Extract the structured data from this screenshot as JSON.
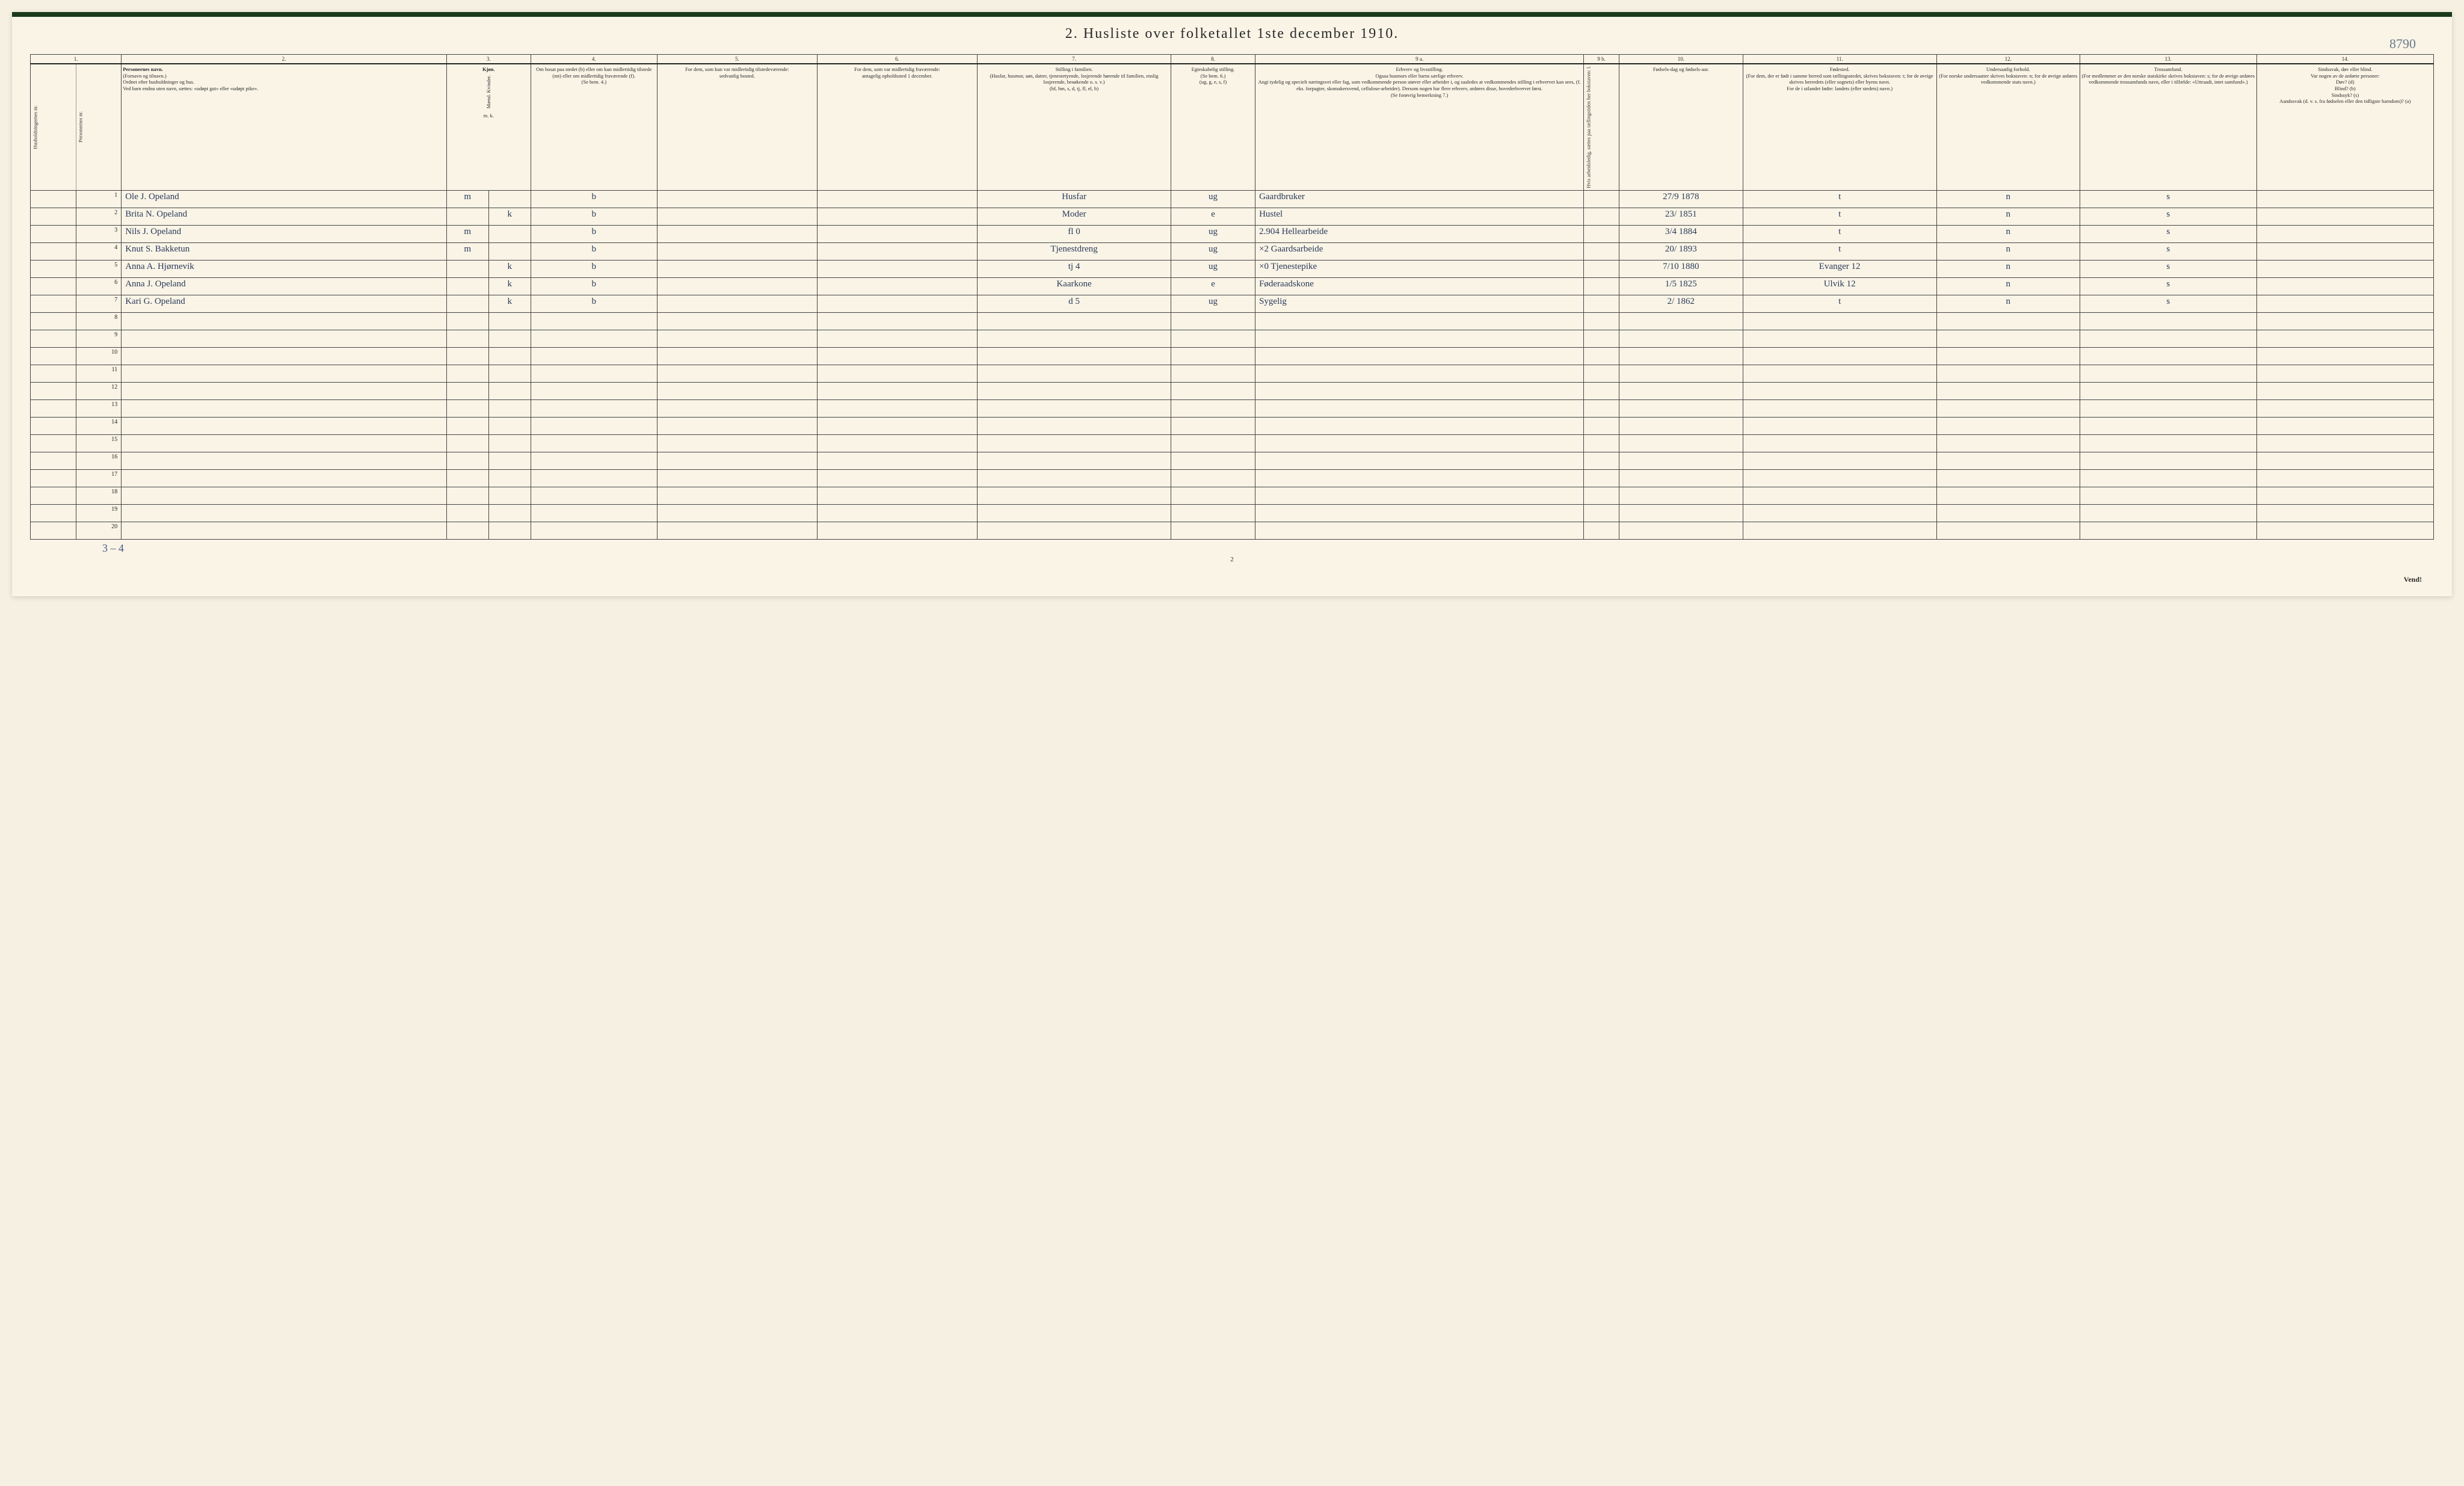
{
  "corner_note": "8790",
  "title": "2.  Husliste over folketallet 1ste december 1910.",
  "col_numbers": [
    "1.",
    "2.",
    "3.",
    "4.",
    "5.",
    "6.",
    "7.",
    "8.",
    "9 a.",
    "9 b.",
    "10.",
    "11.",
    "12.",
    "13.",
    "14."
  ],
  "headers": {
    "c1a": "Husholdningernes nr.",
    "c1b": "Personernes nr.",
    "c2_title": "Personernes navn.",
    "c2_sub": "(Fornavn og tilnavn.)\nOrdnet efter husholdninger og hus.\nVed barn endnu uten navn, sættes: «udøpt gut» eller «udøpt pike».",
    "c3_title": "Kjøn.",
    "c3_sub": "Mænd.  Kvinder.",
    "c3_mk": "m.  k.",
    "c4": "Om bosat paa stedet (b) eller om kun midlertidig tilstede (mt) eller om midlertidig fraværende (f).\n(Se bem. 4.)",
    "c5": "For dem, som kun var midlertidig tilstedeværende:\nsedvanlig bosted.",
    "c6": "For dem, som var midlertidig fraværende:\nantagelig opholdssted 1 december.",
    "c7": "Stilling i familien.\n(Husfar, husmor, søn, datter, tjenestetyende, losjerende hørende til familien, enslig losjerende, besøkende o. s. v.)\n(hf, hm, s, d, tj, fl, el, b)",
    "c8": "Egteskabelig stilling.\n(Se bem. 6.)\n(ug, g, e, s, f)",
    "c9a": "Erhverv og livsstilling.\nOgsaa husmors eller barns særlige erhverv.\nAngi tydelig og specielt næringsvei eller fag, som vedkommende person utøver eller arbeider i, og saaledes at vedkommendes stilling i erhvervet kan sees, (f. eks. forpagter, skomakersvend, cellulose-arbeider). Dersom nogen har flere erhverv, anføres disse, hovederhvervet først.\n(Se forøvrig bemerkning 7.)",
    "c9b": "Hvis arbeidsledig, sættes paa tællingstiden her bokstaven: l.",
    "c10": "Fødsels-dag og fødsels-aar.",
    "c11": "Fødested.\n(For dem, der er født i samme herred som tællingsstedet, skrives bokstaven: t; for de øvrige skrives herredets (eller sognets) eller byens navn.\nFor de i utlandet fødte: landets (eller stedets) navn.)",
    "c12": "Undersaatlig forhold.\n(For norske undersaatter skrives bokstaven: n; for de øvrige anføres vedkommende stats navn.)",
    "c13": "Trossamfund.\n(For medlemmer av den norske statskirke skrives bokstaven: s; for de øvrige anføres vedkommende trossamfunds navn, eller i tilfælde: «Uttraadt, intet samfund».)",
    "c14": "Sindssvak, døv eller blind.\nVar nogen av de anførte personer:\nDøv?      (d)\nBlind?    (b)\nSindssyk? (s)\nAandssvak (d. v. s. fra fødselen eller den tidligste barndom)? (a)"
  },
  "rows": [
    {
      "n": "1",
      "name": "Ole J. Opeland",
      "m": "m",
      "k": "",
      "b": "b",
      "c5": "",
      "c6": "",
      "fam": "Husfar",
      "eg": "ug",
      "erv": "Gaardbruker",
      "l": "",
      "dob": "27/9 1878",
      "fst": "t",
      "und": "n",
      "tro": "s",
      "sind": ""
    },
    {
      "n": "2",
      "name": "Brita N. Opeland",
      "m": "",
      "k": "k",
      "b": "b",
      "c5": "",
      "c6": "",
      "fam": "Moder",
      "eg": "e",
      "erv": "Hustel",
      "l": "",
      "dob": "23/ 1851",
      "fst": "t",
      "und": "n",
      "tro": "s",
      "sind": ""
    },
    {
      "n": "3",
      "name": "Nils J. Opeland",
      "m": "m",
      "k": "",
      "b": "b",
      "c5": "",
      "c6": "",
      "fam": "fl   0",
      "eg": "ug",
      "erv": "2.904 Hellearbeide",
      "l": "",
      "dob": "3/4 1884",
      "fst": "t",
      "und": "n",
      "tro": "s",
      "sind": ""
    },
    {
      "n": "4",
      "name": "Knut S. Bakketun",
      "m": "m",
      "k": "",
      "b": "b",
      "c5": "",
      "c6": "",
      "fam": "Tjenestdreng",
      "eg": "ug",
      "erv": "×2 Gaardsarbeide",
      "l": "",
      "dob": "20/ 1893",
      "fst": "t",
      "und": "n",
      "tro": "s",
      "sind": ""
    },
    {
      "n": "5",
      "name": "Anna A. Hjørnevik",
      "m": "",
      "k": "k",
      "b": "b",
      "c5": "",
      "c6": "",
      "fam": "tj   4",
      "eg": "ug",
      "erv": "×0 Tjenestepike",
      "l": "",
      "dob": "7/10 1880",
      "fst": "Evanger 12",
      "und": "n",
      "tro": "s",
      "sind": ""
    },
    {
      "n": "6",
      "name": "Anna J. Opeland",
      "m": "",
      "k": "k",
      "b": "b",
      "c5": "",
      "c6": "",
      "fam": "Kaarkone",
      "eg": "e",
      "erv": "Føderaadskone",
      "l": "",
      "dob": "1/5 1825",
      "fst": "Ulvik 12",
      "und": "n",
      "tro": "s",
      "sind": ""
    },
    {
      "n": "7",
      "name": "Kari G. Opeland",
      "m": "",
      "k": "k",
      "b": "b",
      "c5": "",
      "c6": "",
      "fam": "d   5",
      "eg": "ug",
      "erv": "Sygelig",
      "l": "",
      "dob": "2/ 1862",
      "fst": "t",
      "und": "n",
      "tro": "s",
      "sind": ""
    }
  ],
  "empty_rows": [
    "8",
    "9",
    "10",
    "11",
    "12",
    "13",
    "14",
    "15",
    "16",
    "17",
    "18",
    "19",
    "20"
  ],
  "footer_tally": "3 – 4",
  "page_number": "2",
  "vend": "Vend!",
  "colors": {
    "paper": "#f9f4e6",
    "ink": "#2a2a2a",
    "handwriting": "#2a3a5a",
    "topbar": "#1a3a1a"
  }
}
